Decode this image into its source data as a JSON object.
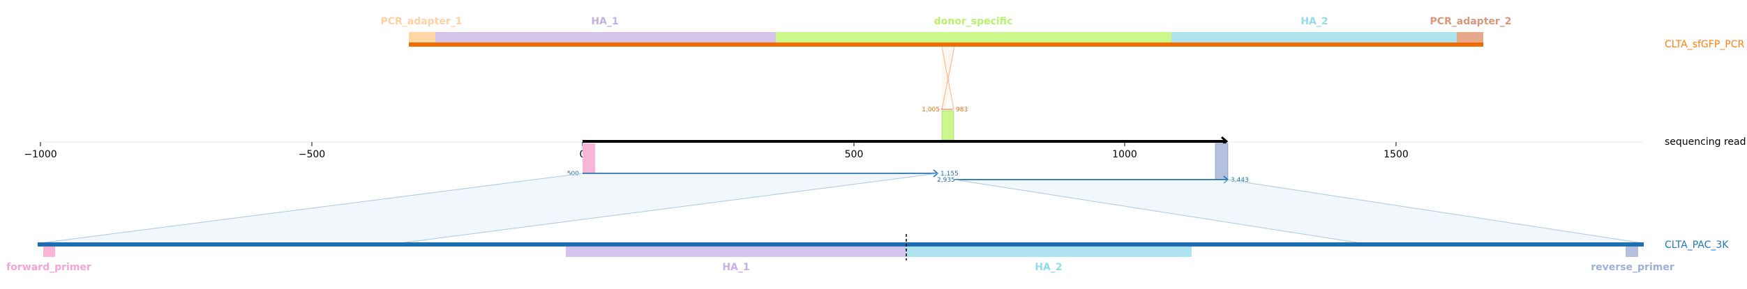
{
  "top_construct": {
    "name": "CLTA_sfGFP_PCR",
    "name_color": "#ff7f0e",
    "bar_color": "#ef6c00",
    "features": [
      {
        "label": "PCR_adapter_1",
        "color": "#ffd6a6",
        "label_color": "#ffd1a0"
      },
      {
        "label": "HA_1",
        "color": "#d4c4ec",
        "label_color": "#c3b0e6"
      },
      {
        "label": "donor_specific",
        "color": "#caf88a",
        "label_color": "#b6f36a"
      },
      {
        "label": "HA_2",
        "color": "#ace3ee",
        "label_color": "#92dcea"
      },
      {
        "label": "PCR_adapter_2",
        "color": "#e8a98b",
        "label_color": "#d9967c"
      }
    ]
  },
  "sequencing_read": {
    "name": "sequencing read",
    "axis_ticks": [
      "−1000",
      "−500",
      "0",
      "500",
      "1000",
      "1500"
    ],
    "donor_labels": {
      "left": "1,005",
      "right": "983"
    },
    "read_labels": {
      "left_start": "500",
      "first_end": "1,155",
      "second_start": "2,935",
      "second_end": "3,443"
    }
  },
  "bottom_construct": {
    "name": "CLTA_PAC_3K",
    "name_color": "#1f77b4",
    "bar_color": "#1f6fb0",
    "features": [
      {
        "label": "forward_primer",
        "color": "#f7b6d7",
        "label_color": "#f4a6cf"
      },
      {
        "label": "HA_1",
        "color": "#d4c4ec",
        "label_color": "#c3b0e6"
      },
      {
        "label": "HA_2",
        "color": "#ace3ee",
        "label_color": "#92dcea"
      },
      {
        "label": "reverse_primer",
        "color": "#b3c0de",
        "label_color": "#9fb0d6"
      }
    ]
  }
}
